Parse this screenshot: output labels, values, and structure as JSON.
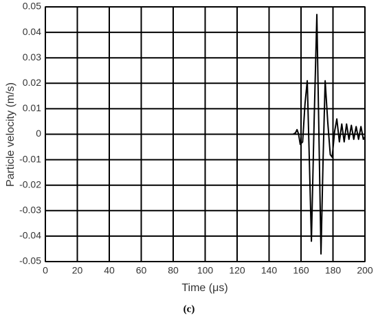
{
  "chart_data": {
    "type": "line",
    "xlabel": "Time (μs)",
    "ylabel": "Particle velocity (m/s)",
    "caption": "(c)",
    "x": [
      0,
      155,
      156.5,
      157.5,
      158.5,
      159.5,
      161,
      162.5,
      163.9,
      165.2,
      166.5,
      168.2,
      169.9,
      171.2,
      172.5,
      173.8,
      175.1,
      176.7,
      178.3,
      179.5,
      181,
      182.4,
      184,
      185.5,
      187,
      188.5,
      190,
      191.5,
      193,
      194.5,
      196,
      197.5,
      199,
      200
    ],
    "series": [
      {
        "color": "#000000",
        "values": [
          0,
          0,
          0.0005,
          0.0018,
          0,
          -0.004,
          -0.003,
          0.012,
          0.021,
          -0.01,
          -0.042,
          0.005,
          0.047,
          0,
          -0.047,
          -0.01,
          0.021,
          0.005,
          -0.008,
          -0.009,
          0.001,
          0.006,
          -0.003,
          0.004,
          -0.003,
          0.004,
          -0.002,
          0.0035,
          -0.002,
          0.003,
          -0.002,
          0.003,
          -0.002,
          -0.001
        ]
      }
    ],
    "xlim": [
      0,
      200
    ],
    "xticks": [
      0,
      20,
      40,
      60,
      80,
      100,
      120,
      140,
      160,
      180,
      200
    ],
    "ylim": [
      -0.05,
      0.05
    ],
    "yticks": [
      -0.05,
      -0.04,
      -0.03,
      -0.02,
      -0.01,
      0,
      0.01,
      0.02,
      0.03,
      0.04,
      0.05
    ],
    "grid": true
  }
}
